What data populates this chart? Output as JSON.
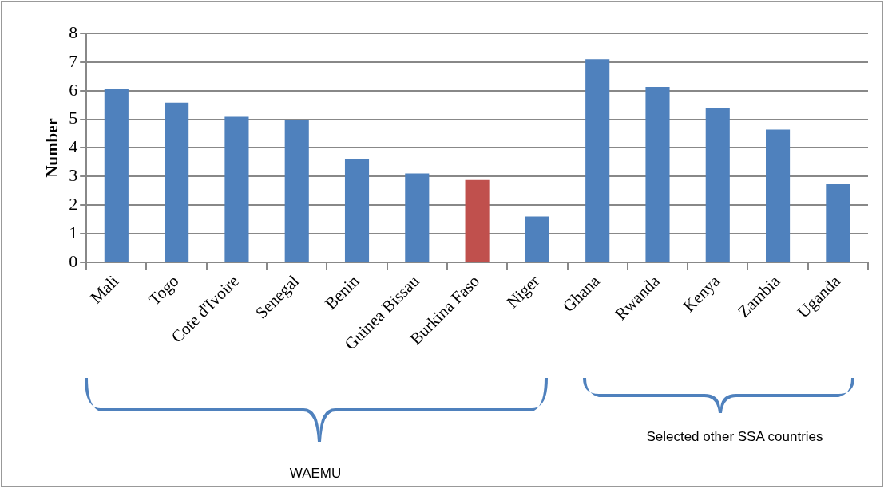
{
  "chart_data": {
    "type": "bar",
    "ylabel": "Number",
    "categories": [
      "Mali",
      "Togo",
      "Cote d'Ivoire",
      "Senegal",
      "Benin",
      "Guinea Bissau",
      "Burkina Faso",
      "Niger",
      "Ghana",
      "Rwanda",
      "Kenya",
      "Zambia",
      "Uganda"
    ],
    "values": [
      6.07,
      5.58,
      5.09,
      4.96,
      3.62,
      3.11,
      2.88,
      1.6,
      7.1,
      6.13,
      5.4,
      4.64,
      2.73
    ],
    "colors": [
      "#4f81bd",
      "#4f81bd",
      "#4f81bd",
      "#4f81bd",
      "#4f81bd",
      "#4f81bd",
      "#c0504d",
      "#4f81bd",
      "#4f81bd",
      "#4f81bd",
      "#4f81bd",
      "#4f81bd",
      "#4f81bd"
    ],
    "ylim": [
      0,
      8
    ],
    "yticks": [
      0,
      1,
      2,
      3,
      4,
      5,
      6,
      7,
      8
    ],
    "grid": "y",
    "legend": false,
    "annotations": [
      "WAEMU",
      "Selected other SSA countries"
    ]
  }
}
